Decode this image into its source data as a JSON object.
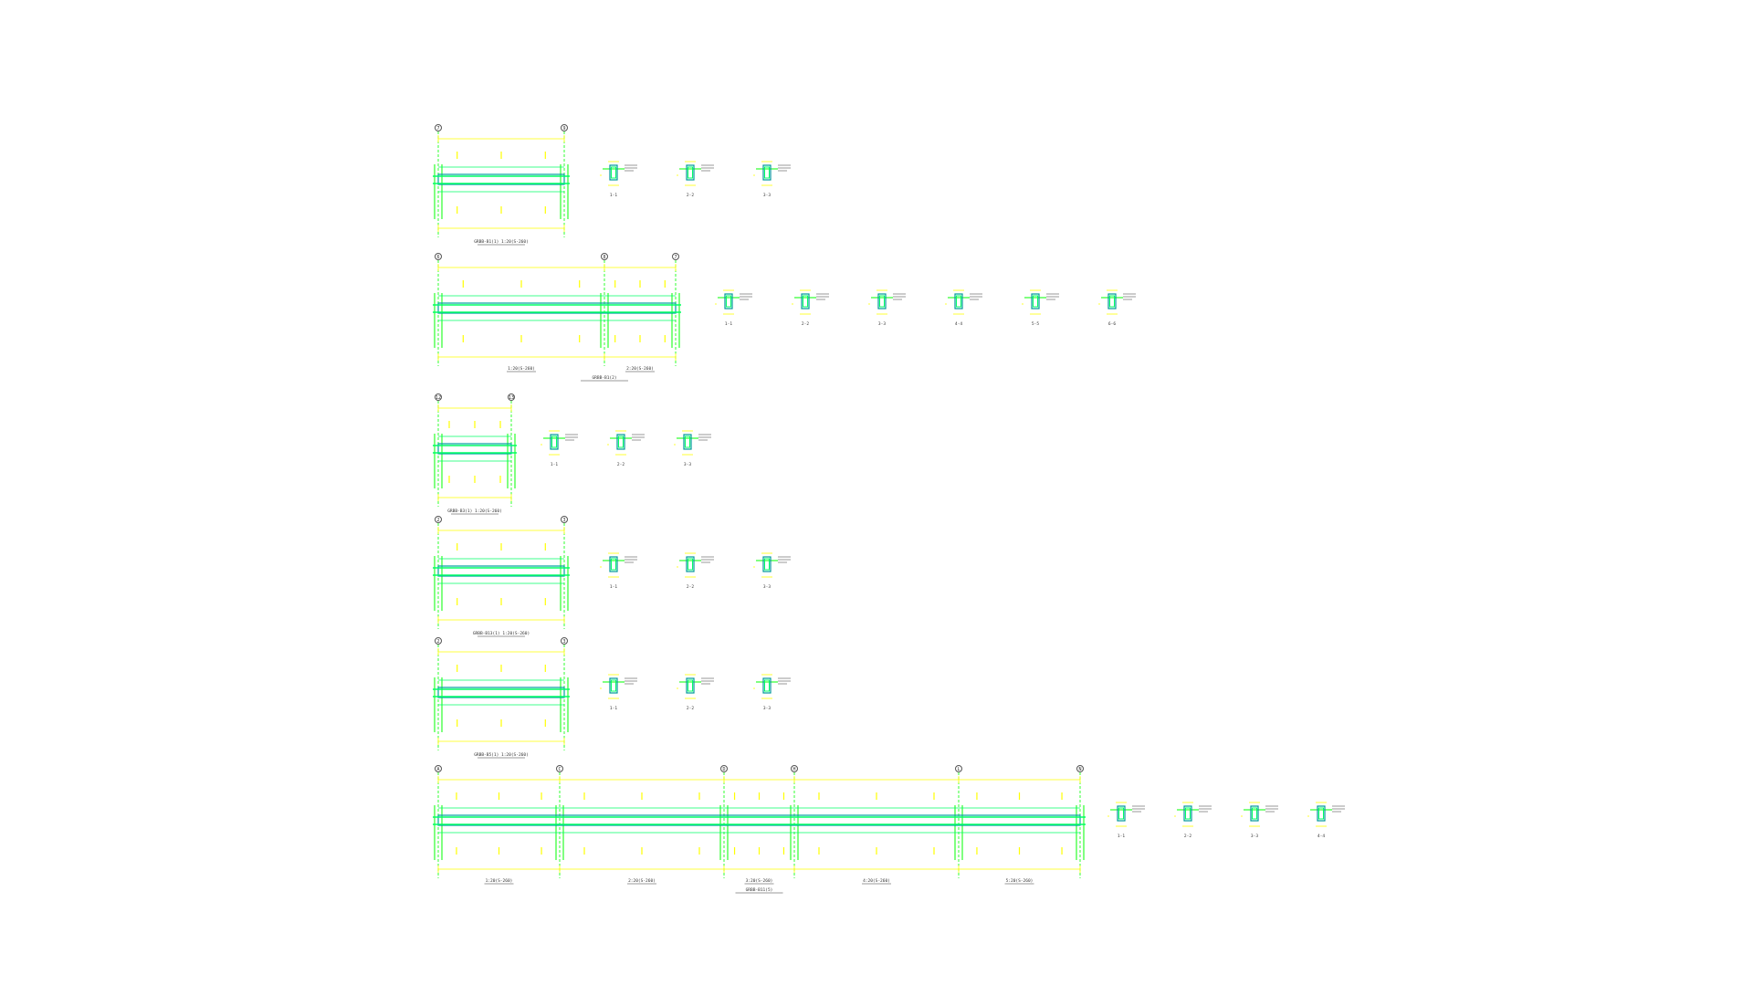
{
  "colors": {
    "background": "#ffffff",
    "dimension": "#ffff00",
    "grid_line": "#00ff00",
    "beam_outline": "#00a0a0",
    "rebar": "#00ff66",
    "section_outline": "#009999",
    "axis_bubble": "#555555",
    "annotation": "#333333"
  },
  "beams": [
    {
      "id": "beam-1",
      "axes": [
        "7",
        "9"
      ],
      "title": "GRBB-B1(1) 1:20(S-260)",
      "span_labels": [],
      "sections": [
        "1-1",
        "2-2",
        "3-3"
      ]
    },
    {
      "id": "beam-2",
      "axes": [
        "6",
        "8",
        "7"
      ],
      "title": "GRBB-B1(2)",
      "span_labels": [
        "1:20(S-260)",
        "2:20(S-260)"
      ],
      "sections": [
        "1-1",
        "2-2",
        "3-3",
        "4-4",
        "5-5",
        "6-6"
      ]
    },
    {
      "id": "beam-3",
      "axes": [
        "12",
        "13"
      ],
      "title": "GRBB-B3(1) 1:20(S-260)",
      "span_labels": [],
      "sections": [
        "1-1",
        "2-2",
        "3-3"
      ]
    },
    {
      "id": "beam-4",
      "axes": [
        "2",
        "3"
      ],
      "title": "GRBB-B13(1) 1:20(S-260)",
      "span_labels": [],
      "sections": [
        "1-1",
        "2-2",
        "3-3"
      ]
    },
    {
      "id": "beam-5",
      "axes": [
        "2",
        "3"
      ],
      "title": "GRBB-B5(1) 1:20(S-260)",
      "span_labels": [],
      "sections": [
        "1-1",
        "2-2",
        "3-3"
      ]
    },
    {
      "id": "beam-6",
      "axes": [
        "A",
        "C",
        "D",
        "H",
        "L",
        "N"
      ],
      "title": "GRBB-B11(5)",
      "span_labels": [
        "1:20(S-260)",
        "2:20(S-260)",
        "3:20(S-260)",
        "4:20(S-260)",
        "5:20(S-260)"
      ],
      "sections": [
        "1-1",
        "2-2",
        "3-3",
        "4-4"
      ]
    }
  ]
}
